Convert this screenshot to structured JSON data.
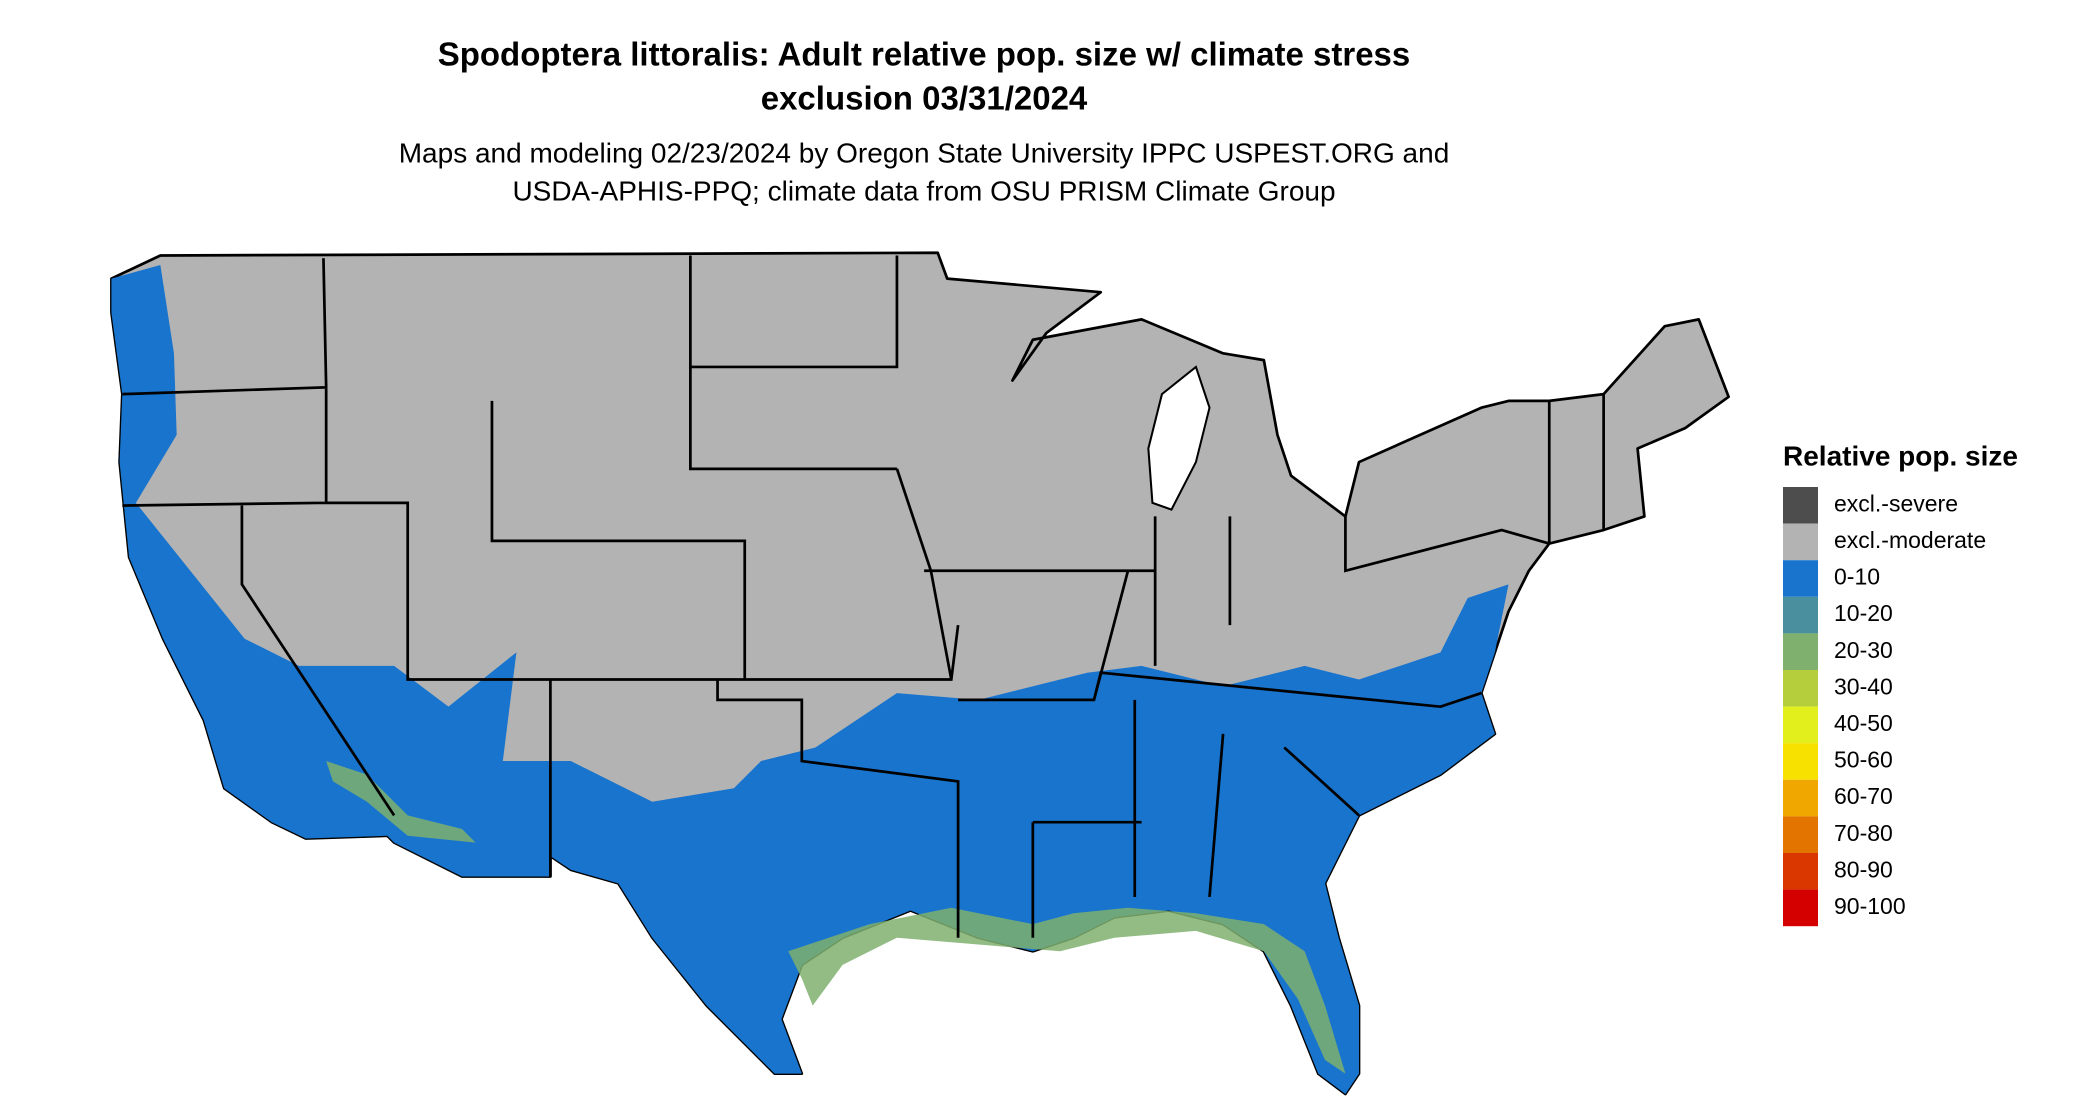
{
  "title": [
    "Spodoptera littoralis: Adult relative pop. size w/ climate stress",
    "exclusion 03/31/2024"
  ],
  "subtitle": [
    "Maps and modeling 02/23/2024 by Oregon State University IPPC USPEST.ORG and",
    "USDA-APHIS-PPQ; climate data from OSU PRISM Climate Group"
  ],
  "legend": {
    "title": "Relative pop. size",
    "items": [
      {
        "label": "excl.-severe",
        "color": "#4d4d4d"
      },
      {
        "label": "excl.-moderate",
        "color": "#b3b3b3"
      },
      {
        "label": "0-10",
        "color": "#1874cd"
      },
      {
        "label": "10-20",
        "color": "#4a8f9e"
      },
      {
        "label": "20-30",
        "color": "#7fb06e"
      },
      {
        "label": "30-40",
        "color": "#b5cf3c"
      },
      {
        "label": "40-50",
        "color": "#e2ef1c"
      },
      {
        "label": "50-60",
        "color": "#f6e100"
      },
      {
        "label": "60-70",
        "color": "#f0a800"
      },
      {
        "label": "70-80",
        "color": "#e47400"
      },
      {
        "label": "80-90",
        "color": "#da3600"
      },
      {
        "label": "90-100",
        "color": "#d40000"
      }
    ]
  }
}
